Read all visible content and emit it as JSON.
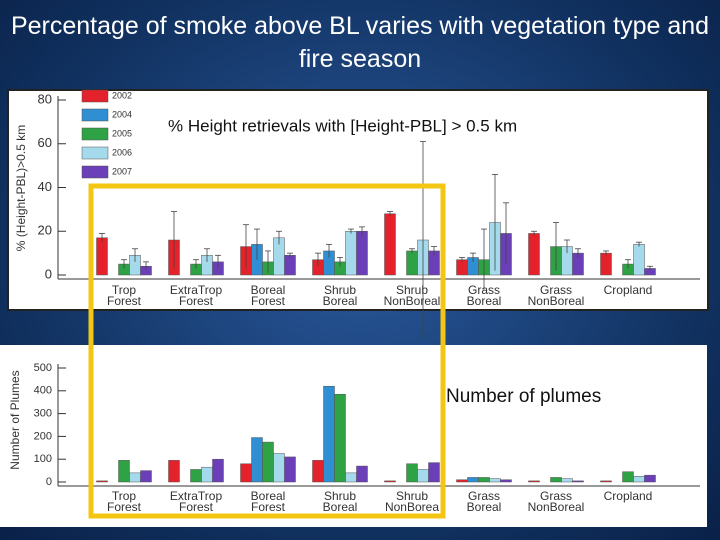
{
  "slide_title": "Percentage of smoke above BL varies with vegetation type and fire season",
  "chart_data": [
    {
      "type": "bar",
      "ylabel": "% (Height-PBL)>0.5 km",
      "annotation": "% Height retrievals with [Height-PBL] > 0.5 km",
      "categories": [
        "Trop Forest",
        "ExtraTrop Forest",
        "Boreal Forest",
        "Shrub Boreal",
        "Shrub NonBoreal",
        "Grass Boreal",
        "Grass NonBoreal",
        "Cropland"
      ],
      "ylim": [
        0,
        80
      ],
      "yticks": [
        0,
        20,
        40,
        60,
        80
      ],
      "legend": "upper left",
      "series": [
        {
          "name": "2002",
          "color": "#e3222b",
          "values": [
            17,
            16,
            13,
            7,
            28,
            7,
            19,
            10
          ],
          "errors": [
            2,
            13,
            10,
            3,
            1,
            1,
            1,
            1
          ]
        },
        {
          "name": "2004",
          "color": "#2f8fd2",
          "values": [
            null,
            null,
            14,
            11,
            null,
            8,
            null,
            null
          ],
          "errors": [
            null,
            null,
            7,
            3,
            null,
            2,
            null,
            null
          ]
        },
        {
          "name": "2005",
          "color": "#2ea244",
          "values": [
            5,
            5,
            6,
            6,
            11,
            7,
            13,
            5
          ],
          "errors": [
            2,
            2,
            5,
            2,
            1,
            14,
            11,
            2
          ]
        },
        {
          "name": "2006",
          "color": "#a5d9ec",
          "values": [
            9,
            9,
            17,
            20,
            16,
            24,
            13,
            14
          ],
          "errors": [
            3,
            3,
            3,
            1,
            45,
            22,
            3,
            1
          ]
        },
        {
          "name": "2007",
          "color": "#6b3fb8",
          "values": [
            4,
            6,
            9,
            20,
            11,
            19,
            10,
            3
          ],
          "errors": [
            2,
            3,
            1,
            2,
            2,
            14,
            2,
            1
          ]
        }
      ]
    },
    {
      "type": "bar",
      "ylabel": "Number of Plumes",
      "annotation": "Number of plumes",
      "categories": [
        "Trop Forest",
        "ExtraTrop Forest",
        "Boreal Forest",
        "Shrub Boreal",
        "Shrub NonBorea",
        "Grass Boreal",
        "Grass NonBoreal",
        "Cropland"
      ],
      "ylim": [
        0,
        500
      ],
      "yticks": [
        0,
        100,
        200,
        300,
        400,
        500
      ],
      "series": [
        {
          "color": "#e3222b",
          "values": [
            5,
            95,
            80,
            95,
            5,
            10,
            5,
            5
          ]
        },
        {
          "color": "#2f8fd2",
          "values": [
            null,
            null,
            195,
            420,
            null,
            20,
            null,
            null
          ]
        },
        {
          "color": "#2ea244",
          "values": [
            95,
            55,
            175,
            385,
            80,
            20,
            20,
            45
          ]
        },
        {
          "color": "#a5d9ec",
          "values": [
            40,
            65,
            125,
            40,
            55,
            15,
            15,
            25
          ]
        },
        {
          "color": "#6b3fb8",
          "values": [
            50,
            100,
            110,
            70,
            85,
            10,
            5,
            30
          ]
        }
      ]
    }
  ]
}
